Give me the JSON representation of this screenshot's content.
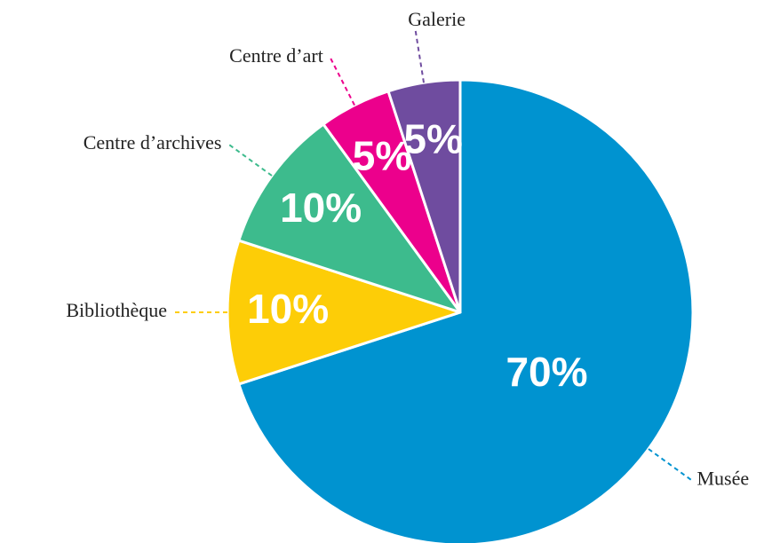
{
  "chart_data": {
    "type": "pie",
    "categories": [
      "Musée",
      "Bibliothèque",
      "Centre d’archives",
      "Centre d’art",
      "Galerie"
    ],
    "values": [
      70,
      10,
      10,
      5,
      5
    ],
    "value_labels": [
      "70%",
      "10%",
      "10%",
      "5%",
      "5%"
    ],
    "colors": [
      "#0093d0",
      "#fdcd07",
      "#3dbb8d",
      "#ec008c",
      "#6f4c9f"
    ]
  }
}
